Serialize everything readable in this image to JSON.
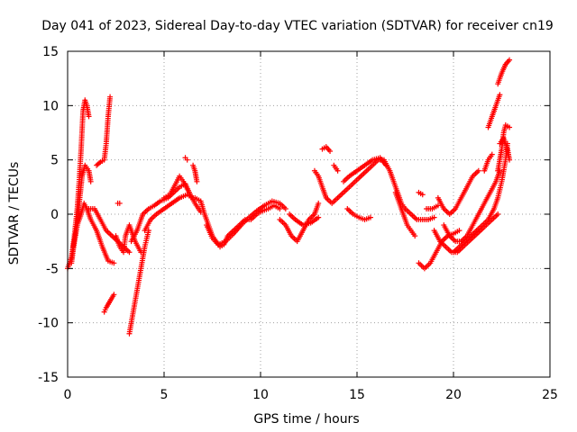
{
  "chart_data": {
    "type": "scatter",
    "title": "Day 041 of 2023, Sidereal Day-to-day VTEC variation (SDTVAR) for receiver cn19",
    "xlabel": "GPS time / hours",
    "ylabel": "SDTVAR / TECUs",
    "xlim": [
      0,
      25
    ],
    "ylim": [
      -15,
      15
    ],
    "xticks": [
      "0",
      "5",
      "10",
      "15",
      "20",
      "25"
    ],
    "yticks": [
      "-15",
      "-10",
      "-5",
      "0",
      "5",
      "10",
      "15"
    ],
    "grid": true,
    "marker": "+",
    "series": [
      {
        "name": "SDTVAR",
        "color": "#ff0000",
        "tracks": [
          [
            [
              0.0,
              -5.0
            ],
            [
              0.2,
              -4.0
            ],
            [
              0.35,
              -2.0
            ],
            [
              0.5,
              0.5
            ],
            [
              0.6,
              3.0
            ],
            [
              0.7,
              6.0
            ],
            [
              0.8,
              9.5
            ],
            [
              0.9,
              10.5
            ],
            [
              1.0,
              10.0
            ],
            [
              1.1,
              9.0
            ]
          ],
          [
            [
              0.3,
              -3.0
            ],
            [
              0.5,
              -1.0
            ],
            [
              0.6,
              1.0
            ],
            [
              0.75,
              3.5
            ],
            [
              0.9,
              4.5
            ],
            [
              1.1,
              4.0
            ],
            [
              1.2,
              3.0
            ]
          ],
          [
            [
              0.2,
              -4.5
            ],
            [
              0.35,
              -2.5
            ],
            [
              0.5,
              -1.0
            ],
            [
              0.7,
              0.0
            ],
            [
              0.85,
              1.0
            ],
            [
              1.0,
              0.5
            ],
            [
              1.2,
              -0.5
            ],
            [
              1.5,
              -1.5
            ],
            [
              1.8,
              -3.0
            ],
            [
              2.1,
              -4.3
            ],
            [
              2.4,
              -4.5
            ]
          ],
          [
            [
              1.1,
              0.5
            ],
            [
              1.4,
              0.5
            ],
            [
              1.7,
              -0.5
            ],
            [
              2.0,
              -1.5
            ],
            [
              2.3,
              -2.0
            ],
            [
              2.6,
              -2.5
            ],
            [
              2.9,
              -3.0
            ],
            [
              3.2,
              -3.5
            ]
          ],
          [
            [
              1.5,
              4.5
            ],
            [
              1.7,
              4.8
            ],
            [
              1.9,
              5.0
            ],
            [
              2.0,
              6.5
            ],
            [
              2.1,
              9.0
            ],
            [
              2.2,
              10.8
            ]
          ],
          [
            [
              1.9,
              -9.0
            ],
            [
              2.0,
              -8.6
            ],
            [
              2.2,
              -8.0
            ],
            [
              2.4,
              -7.4
            ]
          ],
          [
            [
              2.6,
              1.0
            ],
            [
              2.7,
              1.0
            ]
          ],
          [
            [
              2.5,
              -2.0
            ],
            [
              2.7,
              -3.0
            ],
            [
              2.9,
              -3.5
            ],
            [
              3.0,
              -2.0
            ],
            [
              3.2,
              -1.0
            ],
            [
              3.5,
              -2.5
            ],
            [
              3.8,
              -3.5
            ]
          ],
          [
            [
              3.2,
              -11.0
            ],
            [
              3.4,
              -9.0
            ],
            [
              3.6,
              -7.0
            ],
            [
              3.8,
              -5.0
            ],
            [
              4.0,
              -3.0
            ],
            [
              4.2,
              -1.5
            ]
          ],
          [
            [
              3.3,
              -2.5
            ],
            [
              3.6,
              -1.5
            ],
            [
              3.9,
              0.0
            ],
            [
              4.2,
              0.5
            ],
            [
              4.5,
              0.8
            ],
            [
              4.8,
              1.2
            ],
            [
              5.2,
              1.5
            ],
            [
              5.5,
              2.0
            ],
            [
              5.8,
              2.5
            ],
            [
              6.1,
              2.8
            ],
            [
              6.3,
              2.0
            ],
            [
              6.6,
              1.0
            ],
            [
              6.9,
              0.2
            ]
          ],
          [
            [
              4.0,
              -1.5
            ],
            [
              4.3,
              -0.5
            ],
            [
              4.6,
              0.0
            ],
            [
              5.0,
              0.5
            ],
            [
              5.4,
              1.0
            ],
            [
              5.8,
              1.5
            ],
            [
              6.2,
              1.8
            ],
            [
              6.5,
              1.5
            ]
          ],
          [
            [
              5.0,
              1.5
            ],
            [
              5.3,
              1.8
            ],
            [
              5.6,
              2.8
            ],
            [
              5.8,
              3.5
            ],
            [
              6.0,
              3.0
            ],
            [
              6.3,
              2.0
            ]
          ],
          [
            [
              6.1,
              5.2
            ],
            [
              6.2,
              5.0
            ]
          ],
          [
            [
              6.5,
              4.5
            ],
            [
              6.6,
              4.0
            ],
            [
              6.7,
              3.0
            ]
          ],
          [
            [
              6.6,
              1.5
            ],
            [
              6.9,
              1.2
            ],
            [
              7.1,
              0.0
            ],
            [
              7.3,
              -1.0
            ],
            [
              7.5,
              -2.0
            ],
            [
              7.7,
              -2.5
            ],
            [
              7.9,
              -3.0
            ],
            [
              8.1,
              -2.8
            ],
            [
              8.3,
              -2.0
            ],
            [
              8.6,
              -1.5
            ],
            [
              8.9,
              -1.0
            ],
            [
              9.2,
              -0.5
            ],
            [
              9.5,
              -0.5
            ],
            [
              9.8,
              0.0
            ],
            [
              10.1,
              0.3
            ],
            [
              10.4,
              0.5
            ],
            [
              10.7,
              0.8
            ],
            [
              11.0,
              0.5
            ]
          ],
          [
            [
              7.2,
              -1.0
            ],
            [
              7.5,
              -2.2
            ],
            [
              7.8,
              -2.8
            ],
            [
              8.2,
              -2.5
            ],
            [
              8.6,
              -1.8
            ],
            [
              9.0,
              -1.0
            ],
            [
              9.4,
              -0.3
            ],
            [
              9.8,
              0.3
            ],
            [
              10.2,
              0.8
            ],
            [
              10.6,
              1.2
            ],
            [
              11.0,
              1.0
            ],
            [
              11.3,
              0.5
            ]
          ],
          [
            [
              11.0,
              -0.5
            ],
            [
              11.3,
              -1.0
            ],
            [
              11.6,
              -2.0
            ],
            [
              11.9,
              -2.5
            ],
            [
              12.2,
              -1.5
            ],
            [
              12.5,
              -0.5
            ],
            [
              12.8,
              0.0
            ],
            [
              13.0,
              1.0
            ]
          ],
          [
            [
              11.5,
              0.0
            ],
            [
              11.8,
              -0.5
            ],
            [
              12.2,
              -1.0
            ],
            [
              12.6,
              -0.8
            ],
            [
              13.0,
              -0.3
            ]
          ],
          [
            [
              12.8,
              4.0
            ],
            [
              13.0,
              3.5
            ],
            [
              13.2,
              2.5
            ],
            [
              13.4,
              1.5
            ],
            [
              13.7,
              1.0
            ],
            [
              14.0,
              1.5
            ],
            [
              14.3,
              2.0
            ],
            [
              14.6,
              2.5
            ],
            [
              14.9,
              3.0
            ],
            [
              15.2,
              3.5
            ],
            [
              15.5,
              4.0
            ],
            [
              15.8,
              4.5
            ],
            [
              16.1,
              5.0
            ],
            [
              16.4,
              5.0
            ],
            [
              16.7,
              4.0
            ],
            [
              16.9,
              3.0
            ],
            [
              17.1,
              2.0
            ],
            [
              17.3,
              1.0
            ],
            [
              17.5,
              0.5
            ],
            [
              17.8,
              0.0
            ],
            [
              18.1,
              -0.5
            ],
            [
              18.4,
              -0.5
            ],
            [
              18.7,
              -0.5
            ],
            [
              19.0,
              -0.3
            ]
          ],
          [
            [
              13.2,
              6.0
            ],
            [
              13.4,
              6.2
            ],
            [
              13.6,
              5.8
            ]
          ],
          [
            [
              13.8,
              4.5
            ],
            [
              14.0,
              4.0
            ]
          ],
          [
            [
              14.3,
              3.0
            ],
            [
              14.6,
              3.5
            ],
            [
              15.0,
              4.0
            ],
            [
              15.4,
              4.5
            ],
            [
              15.8,
              5.0
            ],
            [
              16.2,
              5.2
            ],
            [
              16.5,
              4.5
            ]
          ],
          [
            [
              14.5,
              0.5
            ],
            [
              14.8,
              0.0
            ],
            [
              15.1,
              -0.3
            ],
            [
              15.4,
              -0.5
            ],
            [
              15.7,
              -0.3
            ]
          ],
          [
            [
              17.0,
              2.0
            ],
            [
              17.3,
              0.5
            ],
            [
              17.6,
              -1.0
            ],
            [
              17.8,
              -1.5
            ],
            [
              18.0,
              -2.0
            ]
          ],
          [
            [
              18.2,
              2.0
            ],
            [
              18.4,
              1.8
            ]
          ],
          [
            [
              18.6,
              0.5
            ],
            [
              18.9,
              0.5
            ],
            [
              19.2,
              0.8
            ]
          ],
          [
            [
              18.2,
              -4.5
            ],
            [
              18.5,
              -5.0
            ],
            [
              18.8,
              -4.5
            ],
            [
              19.1,
              -3.5
            ],
            [
              19.4,
              -2.5
            ],
            [
              19.7,
              -2.0
            ],
            [
              20.0,
              -1.8
            ],
            [
              20.3,
              -1.5
            ]
          ],
          [
            [
              19.0,
              -1.5
            ],
            [
              19.3,
              -2.5
            ],
            [
              19.6,
              -3.0
            ],
            [
              19.9,
              -3.5
            ],
            [
              20.2,
              -3.5
            ],
            [
              20.5,
              -3.0
            ],
            [
              20.8,
              -2.5
            ],
            [
              21.1,
              -2.0
            ],
            [
              21.4,
              -1.5
            ],
            [
              21.7,
              -1.0
            ],
            [
              22.0,
              -0.5
            ],
            [
              22.3,
              0.0
            ]
          ],
          [
            [
              19.2,
              1.5
            ],
            [
              19.5,
              0.5
            ],
            [
              19.8,
              0.0
            ],
            [
              20.1,
              0.5
            ],
            [
              20.4,
              1.5
            ],
            [
              20.7,
              2.5
            ],
            [
              21.0,
              3.5
            ],
            [
              21.3,
              4.0
            ]
          ],
          [
            [
              19.5,
              -1.0
            ],
            [
              19.8,
              -2.0
            ],
            [
              20.1,
              -2.5
            ],
            [
              20.4,
              -2.5
            ],
            [
              20.7,
              -2.0
            ],
            [
              21.0,
              -1.0
            ],
            [
              21.3,
              0.0
            ],
            [
              21.6,
              1.0
            ],
            [
              21.9,
              2.0
            ],
            [
              22.2,
              3.0
            ],
            [
              22.4,
              4.0
            ]
          ],
          [
            [
              20.0,
              -3.5
            ],
            [
              20.3,
              -3.0
            ],
            [
              20.6,
              -2.5
            ],
            [
              20.9,
              -2.0
            ],
            [
              21.2,
              -1.5
            ],
            [
              21.5,
              -1.0
            ],
            [
              21.8,
              -0.5
            ],
            [
              22.1,
              0.5
            ],
            [
              22.3,
              1.5
            ],
            [
              22.5,
              3.0
            ],
            [
              22.7,
              5.0
            ],
            [
              22.8,
              6.5
            ]
          ],
          [
            [
              21.6,
              4.0
            ],
            [
              21.8,
              5.0
            ],
            [
              22.0,
              5.5
            ]
          ],
          [
            [
              21.8,
              8.0
            ],
            [
              22.0,
              9.0
            ],
            [
              22.2,
              10.0
            ],
            [
              22.4,
              11.0
            ]
          ],
          [
            [
              22.3,
              4.0
            ],
            [
              22.4,
              5.0
            ],
            [
              22.5,
              6.0
            ],
            [
              22.6,
              7.5
            ],
            [
              22.7,
              8.2
            ],
            [
              22.9,
              8.0
            ]
          ],
          [
            [
              22.4,
              6.5
            ],
            [
              22.6,
              7.0
            ],
            [
              22.8,
              6.0
            ],
            [
              22.9,
              5.0
            ]
          ],
          [
            [
              22.3,
              12.0
            ],
            [
              22.5,
              13.0
            ],
            [
              22.7,
              13.8
            ],
            [
              22.9,
              14.2
            ]
          ]
        ]
      }
    ]
  }
}
